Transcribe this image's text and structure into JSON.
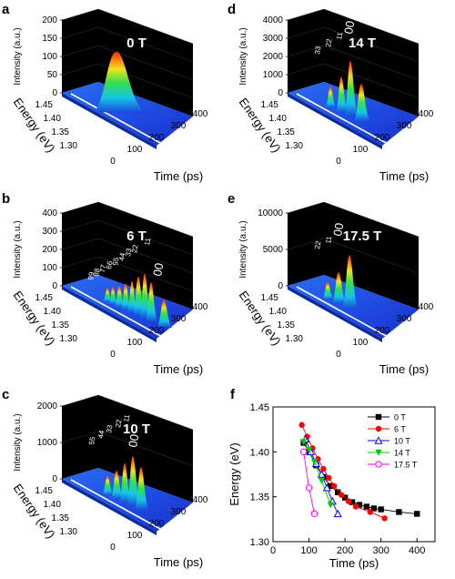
{
  "panels": [
    {
      "letter": "a",
      "field_label": "0 T",
      "z_label": "Intensity (a.u.)",
      "z_ticks": [
        "0",
        "50",
        "100",
        "150",
        "200"
      ],
      "y_label": "Energy (eV)",
      "y_ticks": [
        "1.45",
        "1.40",
        "1.35",
        "1.30"
      ],
      "x_label": "Time (ps)",
      "x_ticks": [
        "0",
        "100",
        "200",
        "300",
        "400"
      ],
      "peak_labels": []
    },
    {
      "letter": "b",
      "field_label": "6 T",
      "z_label": "Intensity (a.u.)",
      "z_ticks": [
        "0",
        "100",
        "200",
        "300",
        "400"
      ],
      "y_label": "Energy (eV)",
      "y_ticks": [
        "1.45",
        "1.40",
        "1.35",
        "1.30"
      ],
      "x_label": "Time (ps)",
      "x_ticks": [
        "0",
        "100",
        "200",
        "300",
        "400"
      ],
      "peak_labels": [
        "99",
        "88",
        "77",
        "66",
        "55",
        "44",
        "33",
        "22",
        "11",
        "00"
      ]
    },
    {
      "letter": "c",
      "field_label": "10 T",
      "z_label": "Intensity (a.u.)",
      "z_ticks": [
        "0",
        "1000",
        "2000"
      ],
      "y_label": "Energy (eV)",
      "y_ticks": [
        "1.45",
        "1.40",
        "1.35",
        "1.30"
      ],
      "x_label": "Time (ps)",
      "x_ticks": [
        "0",
        "100",
        "200",
        "300",
        "400"
      ],
      "peak_labels": [
        "55",
        "44",
        "33",
        "22",
        "11",
        "00"
      ]
    },
    {
      "letter": "d",
      "field_label": "14 T",
      "z_label": "Intensity (a.u.)",
      "z_ticks": [
        "0",
        "1000",
        "2000",
        "3000",
        "4000"
      ],
      "y_label": "Energy (eV)",
      "y_ticks": [
        "1.45",
        "1.40",
        "1.35",
        "1.30"
      ],
      "x_label": "Time (ps)",
      "x_ticks": [
        "0",
        "100",
        "200",
        "300",
        "400"
      ],
      "peak_labels": [
        "33",
        "22",
        "11",
        "00"
      ]
    },
    {
      "letter": "e",
      "field_label": "17.5 T",
      "z_label": "Intensity (a.u.)",
      "z_ticks": [
        "0",
        "5000",
        "10000"
      ],
      "y_label": "Energy (eV)",
      "y_ticks": [
        "1.45",
        "1.40",
        "1.35",
        "1.30"
      ],
      "x_label": "Time (ps)",
      "x_ticks": [
        "0",
        "100",
        "200",
        "300",
        "400"
      ],
      "peak_labels": [
        "22",
        "11",
        "00"
      ]
    }
  ],
  "colors": {
    "jet_low": "#0a1e8c",
    "jet_high": "#ff1a00",
    "box": "#000000"
  },
  "chart_data": {
    "letter": "f",
    "type": "scatter",
    "xlabel": "Time (ps)",
    "ylabel": "Energy (eV)",
    "xlim": [
      0,
      450
    ],
    "ylim": [
      1.3,
      1.45
    ],
    "x_ticks": [
      "0",
      "100",
      "200",
      "300",
      "400"
    ],
    "y_ticks": [
      "1.30",
      "1.35",
      "1.40",
      "1.45"
    ],
    "legend_position": "top-right",
    "series": [
      {
        "name": "0 T",
        "color": "#000000",
        "marker": "square",
        "x": [
          85,
          100,
          120,
          140,
          160,
          180,
          200,
          220,
          240,
          260,
          280,
          300,
          350,
          400
        ],
        "y": [
          1.41,
          1.4,
          1.385,
          1.372,
          1.362,
          1.355,
          1.349,
          1.344,
          1.341,
          1.339,
          1.337,
          1.336,
          1.333,
          1.331
        ]
      },
      {
        "name": "6 T",
        "color": "#ff0000",
        "marker": "circle",
        "x": [
          80,
          95,
          110,
          125,
          140,
          155,
          170,
          190,
          210,
          230,
          270,
          310
        ],
        "y": [
          1.43,
          1.417,
          1.404,
          1.392,
          1.381,
          1.371,
          1.362,
          1.352,
          1.345,
          1.339,
          1.333,
          1.326
        ]
      },
      {
        "name": "10 T",
        "color": "#0000ff",
        "marker": "triangle-up",
        "x": [
          90,
          105,
          120,
          135,
          150,
          165,
          180
        ],
        "y": [
          1.414,
          1.4,
          1.387,
          1.375,
          1.36,
          1.345,
          1.331
        ]
      },
      {
        "name": "14 T",
        "color": "#00cc00",
        "marker": "triangle-down",
        "x": [
          85,
          100,
          115,
          135,
          160
        ],
        "y": [
          1.411,
          1.402,
          1.389,
          1.368,
          1.341
        ]
      },
      {
        "name": "17.5 T",
        "color": "#ff00ff",
        "marker": "circle-open",
        "x": [
          85,
          100,
          115
        ],
        "y": [
          1.4,
          1.36,
          1.331
        ]
      }
    ]
  }
}
